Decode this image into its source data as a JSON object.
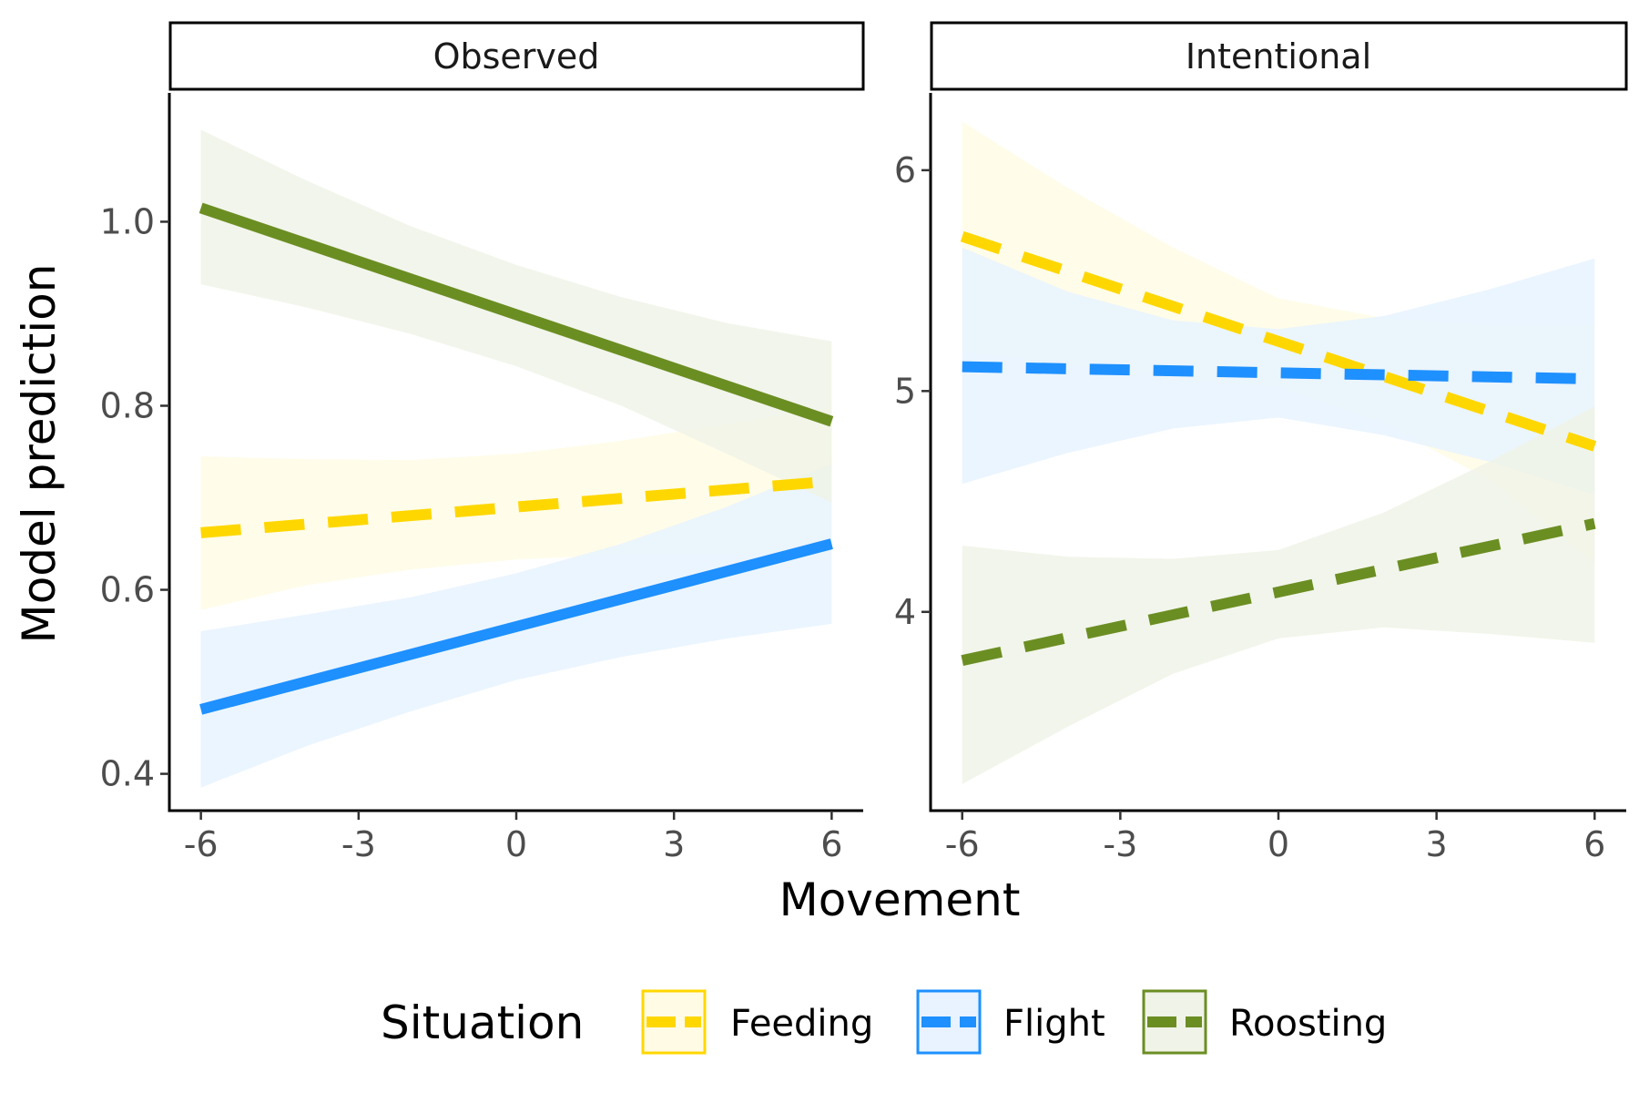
{
  "chart_data": {
    "type": "line",
    "xlabel": "Movement",
    "ylabel": "Model prediction",
    "legend": {
      "title": "Situation",
      "position": "bottom",
      "entries": [
        {
          "label": "Feeding",
          "color": "#FFD700",
          "fill": "#FFFBE5"
        },
        {
          "label": "Flight",
          "color": "#1E90FF",
          "fill": "#E8F3FF"
        },
        {
          "label": "Roosting",
          "color": "#6B8E23",
          "fill": "#F0F3E8"
        }
      ]
    },
    "grid": false,
    "panels": [
      {
        "strip": "Observed",
        "xlim": [
          -6.6,
          6.6
        ],
        "ylim": [
          0.36,
          1.14
        ],
        "xticks": [
          "-6",
          "-3",
          "0",
          "3",
          "6"
        ],
        "xtick_values": [
          -6,
          -3,
          0,
          3,
          6
        ],
        "yticks": [
          "0.4",
          "0.6",
          "0.8",
          "1.0"
        ],
        "ytick_values": [
          0.4,
          0.6,
          0.8,
          1.0
        ],
        "series": [
          {
            "name": "Feeding",
            "dash": true,
            "color": "#FFD700",
            "fill": "#FFFBE5",
            "x": [
              -6,
              6
            ],
            "y": [
              0.662,
              0.718
            ],
            "band_x": [
              -6,
              -4,
              -2,
              0,
              2,
              4,
              6
            ],
            "band_lower": [
              0.578,
              0.605,
              0.622,
              0.633,
              0.638,
              0.639,
              0.64
            ],
            "band_upper": [
              0.745,
              0.742,
              0.741,
              0.748,
              0.762,
              0.78,
              0.798
            ]
          },
          {
            "name": "Flight",
            "dash": false,
            "color": "#1E90FF",
            "fill": "#E8F3FF",
            "x": [
              -6,
              6
            ],
            "y": [
              0.47,
              0.65
            ],
            "band_x": [
              -6,
              -4,
              -2,
              0,
              2,
              4,
              6
            ],
            "band_lower": [
              0.385,
              0.43,
              0.468,
              0.502,
              0.527,
              0.547,
              0.563
            ],
            "band_upper": [
              0.555,
              0.573,
              0.592,
              0.618,
              0.65,
              0.69,
              0.737
            ]
          },
          {
            "name": "Roosting",
            "dash": false,
            "color": "#6B8E23",
            "fill": "#F0F3E8",
            "x": [
              -6,
              6
            ],
            "y": [
              1.015,
              0.783
            ],
            "band_x": [
              -6,
              -4,
              -2,
              0,
              2,
              4,
              6
            ],
            "band_lower": [
              0.932,
              0.907,
              0.878,
              0.843,
              0.8,
              0.748,
              0.695
            ],
            "band_upper": [
              1.1,
              1.045,
              0.995,
              0.953,
              0.918,
              0.89,
              0.87
            ]
          }
        ]
      },
      {
        "strip": "Intentional",
        "xlim": [
          -6.6,
          6.6
        ],
        "ylim": [
          3.1,
          6.35
        ],
        "xticks": [
          "-6",
          "-3",
          "0",
          "3",
          "6"
        ],
        "xtick_values": [
          -6,
          -3,
          0,
          3,
          6
        ],
        "yticks": [
          "4",
          "5",
          "6"
        ],
        "ytick_values": [
          4,
          5,
          6
        ],
        "series": [
          {
            "name": "Feeding",
            "dash": true,
            "color": "#FFD700",
            "fill": "#FFFBE5",
            "x": [
              -6,
              6
            ],
            "y": [
              5.7,
              4.75
            ],
            "band_x": [
              -6,
              -4,
              -2,
              0,
              2,
              4,
              6
            ],
            "band_lower": [
              5.18,
              5.12,
              5.05,
              5.02,
              4.85,
              4.6,
              4.22
            ],
            "band_upper": [
              6.22,
              5.92,
              5.65,
              5.42,
              5.33,
              5.3,
              5.3
            ]
          },
          {
            "name": "Flight",
            "dash": true,
            "color": "#1E90FF",
            "fill": "#E8F3FF",
            "x": [
              -6,
              6
            ],
            "y": [
              5.11,
              5.055
            ],
            "band_x": [
              -6,
              -4,
              -2,
              0,
              2,
              4,
              6
            ],
            "band_lower": [
              4.58,
              4.72,
              4.83,
              4.88,
              4.8,
              4.68,
              4.53
            ],
            "band_upper": [
              5.65,
              5.45,
              5.32,
              5.28,
              5.34,
              5.46,
              5.6
            ]
          },
          {
            "name": "Roosting",
            "dash": true,
            "color": "#6B8E23",
            "fill": "#F0F3E8",
            "x": [
              -6,
              6
            ],
            "y": [
              3.78,
              4.4
            ],
            "band_x": [
              -6,
              -4,
              -2,
              0,
              2,
              4,
              6
            ],
            "band_lower": [
              3.22,
              3.48,
              3.72,
              3.88,
              3.93,
              3.9,
              3.86
            ],
            "band_upper": [
              4.3,
              4.25,
              4.24,
              4.28,
              4.45,
              4.68,
              4.93
            ]
          }
        ]
      }
    ]
  }
}
